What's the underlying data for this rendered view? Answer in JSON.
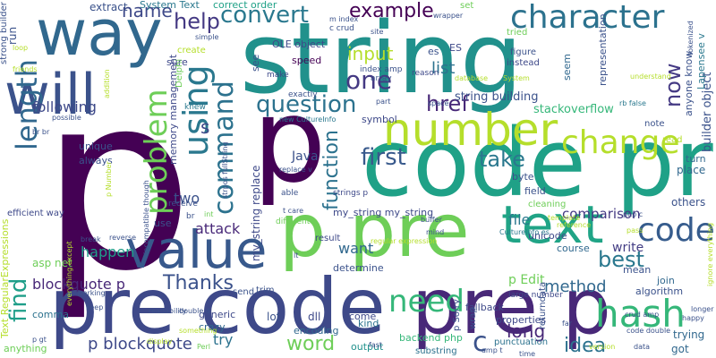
{
  "words": [
    {
      "text": "p",
      "color": "#440154"
    },
    {
      "text": "string",
      "color": "#21918c"
    },
    {
      "text": "code pre",
      "color": "#1fa187"
    },
    {
      "text": "pre code",
      "color": "#3e4989"
    },
    {
      "text": "pre p",
      "color": "#482878"
    },
    {
      "text": "p pre",
      "color": "#6ece58"
    },
    {
      "text": "way",
      "color": "#31688e"
    },
    {
      "text": "will",
      "color": "#3b528b"
    },
    {
      "text": "value",
      "color": "#38598c"
    },
    {
      "text": "text",
      "color": "#20a486"
    },
    {
      "text": "number",
      "color": "#b5de2b"
    },
    {
      "text": "p",
      "color": "#440154"
    },
    {
      "text": "code",
      "color": "#365c8d"
    },
    {
      "text": "character",
      "color": "#2c728e"
    },
    {
      "text": "change",
      "color": "#b5de2b"
    },
    {
      "text": "hash",
      "color": "#35b779"
    },
    {
      "text": "need",
      "color": "#35b779"
    },
    {
      "text": "length",
      "color": "#31688e"
    },
    {
      "text": "using",
      "color": "#2a788e"
    },
    {
      "text": "problem",
      "color": "#6ece58"
    },
    {
      "text": "command",
      "color": "#2c728e"
    },
    {
      "text": "question",
      "color": "#2c728e"
    },
    {
      "text": "first",
      "color": "#38598c"
    },
    {
      "text": "take",
      "color": "#2a788e"
    },
    {
      "text": "convert",
      "color": "#2a788e"
    },
    {
      "text": "example",
      "color": "#440154"
    },
    {
      "text": "help",
      "color": "#443983"
    },
    {
      "text": "name",
      "color": "#3e4989"
    },
    {
      "text": "one",
      "color": "#443983"
    },
    {
      "text": "href",
      "color": "#482878"
    },
    {
      "text": "function",
      "color": "#2c728e"
    },
    {
      "text": "input",
      "color": "#b5de2b"
    },
    {
      "text": "list",
      "color": "#2c728e"
    },
    {
      "text": "best",
      "color": "#2a788e"
    },
    {
      "text": "now",
      "color": "#443983"
    },
    {
      "text": "find",
      "color": "#1f9e89"
    },
    {
      "text": "Thanks",
      "color": "#3b528b"
    },
    {
      "text": "blockquote p",
      "color": "#482878"
    },
    {
      "text": "p blockquote",
      "color": "#3e4989"
    },
    {
      "text": "word",
      "color": "#6ece58"
    },
    {
      "text": "idea",
      "color": "#2c728e"
    },
    {
      "text": "method",
      "color": "#31688e"
    },
    {
      "text": "long",
      "color": "#482878"
    },
    {
      "text": "c",
      "color": "#3b528b"
    },
    {
      "text": "try",
      "color": "#2c728e"
    },
    {
      "text": "want",
      "color": "#31688e"
    },
    {
      "text": "comparison",
      "color": "#443983"
    },
    {
      "text": "two",
      "color": "#3b528b"
    },
    {
      "text": "attack",
      "color": "#482878"
    },
    {
      "text": "happen",
      "color": "#1f9e89"
    },
    {
      "text": "following",
      "color": "#3e4989"
    },
    {
      "text": "Java",
      "color": "#3b528b"
    },
    {
      "text": "write",
      "color": "#433d84"
    },
    {
      "text": "file",
      "color": "#2a788e"
    },
    {
      "text": "p Edit",
      "color": "#6ece58"
    },
    {
      "text": "string building",
      "color": "#3b528b"
    },
    {
      "text": "stackoverflow",
      "color": "#35b779"
    },
    {
      "text": "my_string my_string",
      "color": "#3e4989"
    },
    {
      "text": "my_string replace",
      "color": "#3e4989"
    },
    {
      "text": "System Text",
      "color": "#2a788e"
    },
    {
      "text": "correct order",
      "color": "#1fa187"
    },
    {
      "text": "OLE object",
      "color": "#3e4989"
    },
    {
      "text": "extract",
      "color": "#3b528b"
    },
    {
      "text": "Text RegularExpressions",
      "color": "#b5de2b"
    },
    {
      "text": "builder object",
      "color": "#3b528b"
    },
    {
      "text": "anyone know",
      "color": "#3b528b"
    },
    {
      "text": "Lapensee v",
      "color": "#2a788e"
    },
    {
      "text": "sure",
      "color": "#3e4989"
    },
    {
      "text": "memory management",
      "color": "#3e4989"
    },
    {
      "text": "speed",
      "color": "#440154"
    },
    {
      "text": "see",
      "color": "#3b528b"
    },
    {
      "text": "come",
      "color": "#3e4989"
    },
    {
      "text": "lot",
      "color": "#3b528b"
    },
    {
      "text": "dll",
      "color": "#3e4989"
    },
    {
      "text": "comma",
      "color": "#2c728e"
    },
    {
      "text": "crazy",
      "color": "#31688e"
    },
    {
      "text": "generic",
      "color": "#3e4989"
    },
    {
      "text": "encoding",
      "color": "#31688e"
    },
    {
      "text": "output",
      "color": "#21918c"
    },
    {
      "text": "kind",
      "color": "#2c728e"
    },
    {
      "text": "substring",
      "color": "#2c728e"
    },
    {
      "text": "backend php",
      "color": "#35b779"
    },
    {
      "text": "properties",
      "color": "#3e4989"
    },
    {
      "text": "algorithm",
      "color": "#3b528b"
    },
    {
      "text": "join",
      "color": "#31688e"
    },
    {
      "text": "got",
      "color": "#31688e"
    },
    {
      "text": "trying",
      "color": "#31688e"
    },
    {
      "text": "place",
      "color": "#31688e"
    },
    {
      "text": "turn",
      "color": "#31688e"
    },
    {
      "text": "others",
      "color": "#3b528b"
    },
    {
      "text": "unicode",
      "color": "#3e4989"
    },
    {
      "text": "course",
      "color": "#31688e"
    },
    {
      "text": "field",
      "color": "#3b528b"
    },
    {
      "text": "cleaning",
      "color": "#6ece58"
    },
    {
      "text": "byte",
      "color": "#3b528b"
    },
    {
      "text": "symbol",
      "color": "#3e4989"
    },
    {
      "text": "determine",
      "color": "#3b528b"
    },
    {
      "text": "result",
      "color": "#3e4989"
    },
    {
      "text": "always",
      "color": "#3b528b"
    },
    {
      "text": "unique",
      "color": "#3b528b"
    },
    {
      "text": "use",
      "color": "#3b528b"
    },
    {
      "text": "asp net",
      "color": "#6ece58"
    },
    {
      "text": "efficient way",
      "color": "#3e4989"
    },
    {
      "text": "run",
      "color": "#3b528b"
    },
    {
      "text": "strong builder",
      "color": "#3b528b"
    },
    {
      "text": "fallback",
      "color": "#3e4989"
    },
    {
      "text": "punctuation",
      "color": "#2c728e"
    },
    {
      "text": "large number",
      "color": "#3e4989"
    },
    {
      "text": "returndata",
      "color": "#3b528b"
    },
    {
      "text": "representation",
      "color": "#3b528b"
    },
    {
      "text": "wrap",
      "color": "#3b528b"
    },
    {
      "text": "p Sorry",
      "color": "#3b528b"
    },
    {
      "text": "mean",
      "color": "#3b528b"
    },
    {
      "text": "anything",
      "color": "#6ece58"
    },
    {
      "text": "create",
      "color": "#b5de2b"
    },
    {
      "text": "receive",
      "color": "#3b528b"
    },
    {
      "text": "send",
      "color": "#3b528b"
    },
    {
      "text": "trim",
      "color": "#3b528b"
    },
    {
      "text": "s",
      "color": "#3e4989"
    },
    {
      "text": "es",
      "color": "#3b528b"
    },
    {
      "text": "ES",
      "color": "#3e4989"
    },
    {
      "text": "set",
      "color": "#6ece58"
    },
    {
      "text": "tried",
      "color": "#6ece58"
    },
    {
      "text": "figure",
      "color": "#3b528b"
    },
    {
      "text": "instead",
      "color": "#3e4989"
    },
    {
      "text": "seem",
      "color": "#31688e"
    },
    {
      "text": "note",
      "color": "#3b528b"
    },
    {
      "text": "read",
      "color": "#b5de2b"
    },
    {
      "text": "make",
      "color": "#3e4989"
    },
    {
      "text": "c crud",
      "color": "#3b528b"
    },
    {
      "text": "index amp",
      "color": "#3b528b"
    },
    {
      "text": "array",
      "color": "#3b528b"
    },
    {
      "text": "reason",
      "color": "#3e4989"
    },
    {
      "text": "database",
      "color": "#b5de2b"
    },
    {
      "text": "System",
      "color": "#b5de2b"
    },
    {
      "text": "exactly",
      "color": "#3b528b"
    },
    {
      "text": "new CultureInfo",
      "color": "#2a788e"
    },
    {
      "text": "rb false",
      "color": "#2a788e"
    },
    {
      "text": "understand",
      "color": "#b5de2b"
    },
    {
      "text": "wrapper",
      "color": "#3b528b"
    },
    {
      "text": "site",
      "color": "#3b528b"
    },
    {
      "text": "m index",
      "color": "#3b528b"
    },
    {
      "text": "simple",
      "color": "#3b528b"
    },
    {
      "text": "Delphi",
      "color": "#6ece58"
    },
    {
      "text": "knew",
      "color": "#2a788e"
    },
    {
      "text": "replace v",
      "color": "#3b528b"
    },
    {
      "text": "strings p",
      "color": "#3e4989"
    },
    {
      "text": "able",
      "color": "#3b528b"
    },
    {
      "text": "different",
      "color": "#6ece58"
    },
    {
      "text": "lt",
      "color": "#3b528b"
    },
    {
      "text": "buffer",
      "color": "#3b528b"
    },
    {
      "text": "mind",
      "color": "#3b528b"
    },
    {
      "text": "regular expression",
      "color": "#b5de2b"
    },
    {
      "text": "CultureInfo es",
      "color": "#2a788e"
    },
    {
      "text": "template",
      "color": "#b5de2b"
    },
    {
      "text": "reference",
      "color": "#b5de2b"
    },
    {
      "text": "php c",
      "color": "#3b528b"
    },
    {
      "text": "int",
      "color": "#6ece58"
    },
    {
      "text": "br",
      "color": "#3b528b"
    },
    {
      "text": "br br",
      "color": "#3b528b"
    },
    {
      "text": "possible",
      "color": "#3b528b"
    },
    {
      "text": "reverse",
      "color": "#3b528b"
    },
    {
      "text": "break",
      "color": "#3b528b"
    },
    {
      "text": "working",
      "color": "#3b528b"
    },
    {
      "text": "keep",
      "color": "#3b528b"
    },
    {
      "text": "p gt",
      "color": "#3b528b"
    },
    {
      "text": "double d",
      "color": "#3b528b"
    },
    {
      "text": "readability",
      "color": "#3b528b"
    },
    {
      "text": "Perl",
      "color": "#6ece58"
    },
    {
      "text": "display",
      "color": "#b5de2b"
    },
    {
      "text": "something",
      "color": "#b5de2b"
    },
    {
      "text": "crud amp",
      "color": "#3b528b"
    },
    {
      "text": "data",
      "color": "#3b528b"
    },
    {
      "text": "version",
      "color": "#b5de2b"
    },
    {
      "text": "far",
      "color": "#3b528b"
    },
    {
      "text": "code double",
      "color": "#3b528b"
    },
    {
      "text": "happy",
      "color": "#3b528b"
    },
    {
      "text": "longer",
      "color": "#3b528b"
    },
    {
      "text": "time",
      "color": "#3b528b"
    },
    {
      "text": "fast",
      "color": "#3b528b"
    },
    {
      "text": "amp t",
      "color": "#3b528b"
    },
    {
      "text": "pass",
      "color": "#b5de2b"
    },
    {
      "text": "incompatible though",
      "color": "#3b528b"
    },
    {
      "text": "strpos fullString",
      "color": "#3b528b"
    },
    {
      "text": "t care",
      "color": "#3b528b"
    },
    {
      "text": "part",
      "color": "#3b528b"
    },
    {
      "text": "space",
      "color": "#3b528b"
    },
    {
      "text": "friends",
      "color": "#b5de2b"
    },
    {
      "text": "loop",
      "color": "#b5de2b"
    },
    {
      "text": "addition",
      "color": "#b5de2b"
    },
    {
      "text": "everything except",
      "color": "#b5de2b"
    },
    {
      "text": "ignore everything",
      "color": "#b5de2b"
    },
    {
      "text": "tokenized",
      "color": "#3b528b"
    },
    {
      "text": "p Number",
      "color": "#b5de2b"
    }
  ]
}
